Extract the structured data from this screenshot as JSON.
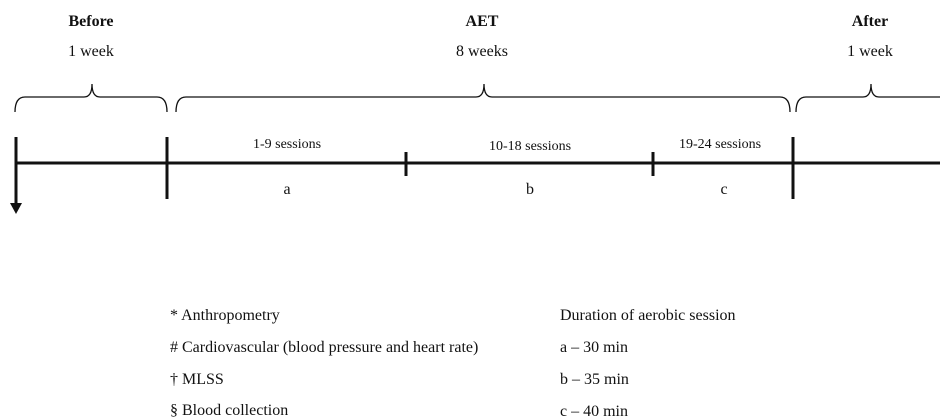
{
  "phases": [
    {
      "title": "Before",
      "duration": "1 week"
    },
    {
      "title": "AET",
      "duration": "8 weeks"
    },
    {
      "title": "After",
      "duration": "1 week"
    }
  ],
  "segments": [
    {
      "sessions": "1-9 sessions",
      "label": "a"
    },
    {
      "sessions": "10-18 sessions",
      "label": "b"
    },
    {
      "sessions": "19-24 sessions",
      "label": "c"
    }
  ],
  "legend": {
    "measures": [
      "* Anthropometry",
      "# Cardiovascular (blood pressure and heart rate)",
      "† MLSS",
      "§ Blood collection"
    ],
    "duration_title": "Duration of aerobic session",
    "durations": [
      "a – 30 min",
      "b – 35 min",
      "c – 40 min"
    ]
  }
}
